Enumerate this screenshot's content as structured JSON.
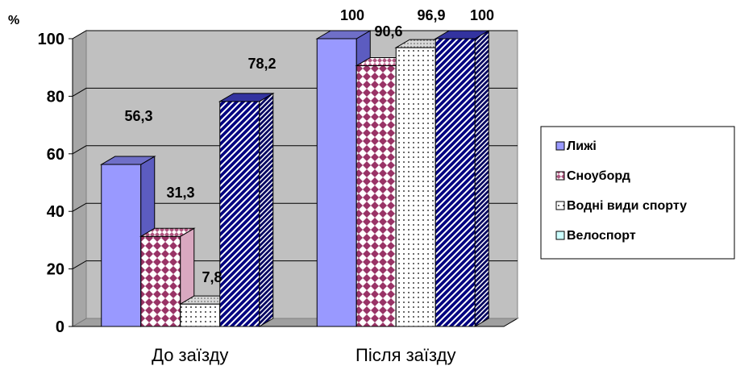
{
  "chart_data": {
    "type": "bar",
    "unit_label": "%",
    "categories": [
      "До заїзду",
      "Після заїзду"
    ],
    "series": [
      {
        "name": "Лижі",
        "values": [
          56.3,
          100
        ],
        "labels": [
          "56,3",
          "100"
        ],
        "color": "#9999ff",
        "pattern": "solid"
      },
      {
        "name": "Сноуборд",
        "values": [
          31.3,
          90.6
        ],
        "labels": [
          "31,3",
          "90,6"
        ],
        "color": "#993366",
        "pattern": "diamond-check"
      },
      {
        "name": "Водні види спорту",
        "values": [
          7.8,
          96.9
        ],
        "labels": [
          "7,8",
          "96,9"
        ],
        "color": "#ffffff",
        "pattern": "dots"
      },
      {
        "name": "Велоспорт",
        "values": [
          78.2,
          100
        ],
        "labels": [
          "78,2",
          "100"
        ],
        "color": "#000080",
        "pattern": "diagonal-stripes"
      }
    ],
    "ylim": [
      0,
      100
    ],
    "yticks": [
      0,
      20,
      40,
      60,
      80,
      100
    ],
    "grid": true,
    "legend_position": "right"
  }
}
